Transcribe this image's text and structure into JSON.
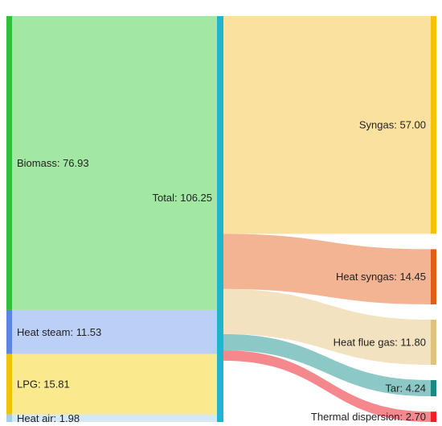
{
  "diagram": {
    "type": "sankey",
    "sources": [
      {
        "id": "biomass",
        "label": "Biomass: 76.93",
        "value": 76.93,
        "color": "#2fc03a",
        "flow_color": "#a2e8a2"
      },
      {
        "id": "heat-steam",
        "label": "Heat steam: 11.53",
        "value": 11.53,
        "color": "#5b86e5",
        "flow_color": "#bcd0f7"
      },
      {
        "id": "lpg",
        "label": "LPG: 15.81",
        "value": 15.81,
        "color": "#f2c300",
        "flow_color": "#fbe98d"
      },
      {
        "id": "heat-air",
        "label": "Heat air: 1.98",
        "value": 1.98,
        "color": "#a6cfe8",
        "flow_color": "#d5e9f4"
      }
    ],
    "total": {
      "label": "Total: 106.25",
      "value": 106.25,
      "color": "#1fb5cf"
    },
    "targets": [
      {
        "id": "syngas",
        "label": "Syngas: 57.00",
        "value": 57.0,
        "color": "#f7c200",
        "flow_color": "#fbe1a0"
      },
      {
        "id": "heat-syngas",
        "label": "Heat syngas: 14.45",
        "value": 14.45,
        "color": "#e45f14",
        "flow_color": "#f3b493"
      },
      {
        "id": "heat-flue-gas",
        "label": "Heat flue gas: 11.80",
        "value": 11.8,
        "color": "#e0c37a",
        "flow_color": "#f3e2c0"
      },
      {
        "id": "tar",
        "label": "Tar: 4.24",
        "value": 4.24,
        "color": "#178a84",
        "flow_color": "#8cc8c6"
      },
      {
        "id": "thermal-dispersion",
        "label": "Thermal dispersion: 2.70",
        "value": 2.7,
        "color": "#ee1f25",
        "flow_color": "#f4888c"
      }
    ]
  }
}
